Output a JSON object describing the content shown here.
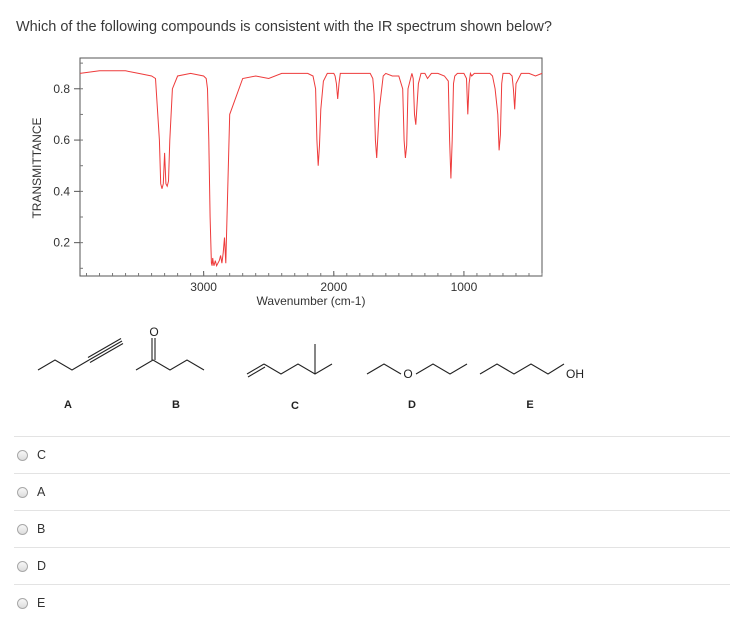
{
  "question": {
    "text": "Which of the following compounds is consistent with the IR spectrum shown below?"
  },
  "chart_data": {
    "type": "line",
    "title": "",
    "xlabel": "Wavenumber (cm-1)",
    "ylabel": "TRANSMITTANCE",
    "xlim": [
      3950,
      400
    ],
    "ylim": [
      0.07,
      0.92
    ],
    "x_reversed": true,
    "xticks": [
      3000,
      2000,
      1000
    ],
    "xtick_labels": [
      "3000",
      "2000",
      "1000"
    ],
    "yticks": [
      0.2,
      0.4,
      0.6,
      0.8
    ],
    "ytick_labels": [
      "0.2",
      "0.4",
      "0.6",
      "0.8"
    ],
    "grid": false,
    "line_color": "#ee3b3b",
    "series": [
      {
        "x": [
          3950,
          3800,
          3600,
          3500,
          3400,
          3370,
          3360,
          3340,
          3330,
          3320,
          3310,
          3300,
          3290,
          3280,
          3270,
          3260,
          3240,
          3200,
          3100,
          3000,
          2980,
          2970,
          2960,
          2950,
          2940,
          2935,
          2930,
          2925,
          2920,
          2910,
          2900,
          2880,
          2870,
          2860,
          2850,
          2840,
          2830,
          2800,
          2700,
          2600,
          2500,
          2400,
          2300,
          2250,
          2200,
          2160,
          2140,
          2130,
          2120,
          2110,
          2100,
          2080,
          2050,
          2000,
          1990,
          1980,
          1970,
          1960,
          1950,
          1900,
          1850,
          1800,
          1750,
          1720,
          1700,
          1690,
          1680,
          1670,
          1650,
          1620,
          1600,
          1550,
          1500,
          1470,
          1460,
          1450,
          1440,
          1430,
          1400,
          1390,
          1380,
          1370,
          1350,
          1330,
          1300,
          1280,
          1250,
          1200,
          1150,
          1120,
          1110,
          1100,
          1090,
          1080,
          1070,
          1050,
          1000,
          980,
          970,
          960,
          950,
          940,
          920,
          900,
          870,
          850,
          830,
          800,
          780,
          760,
          740,
          730,
          720,
          710,
          700,
          650,
          630,
          620,
          610,
          600,
          560,
          500,
          450,
          400
        ],
        "y": [
          0.86,
          0.87,
          0.87,
          0.86,
          0.85,
          0.84,
          0.76,
          0.6,
          0.43,
          0.41,
          0.43,
          0.55,
          0.43,
          0.42,
          0.44,
          0.6,
          0.8,
          0.85,
          0.86,
          0.85,
          0.84,
          0.8,
          0.6,
          0.3,
          0.12,
          0.11,
          0.14,
          0.12,
          0.11,
          0.13,
          0.11,
          0.13,
          0.15,
          0.12,
          0.16,
          0.22,
          0.12,
          0.7,
          0.84,
          0.85,
          0.84,
          0.86,
          0.86,
          0.86,
          0.86,
          0.85,
          0.8,
          0.6,
          0.5,
          0.58,
          0.72,
          0.83,
          0.86,
          0.86,
          0.85,
          0.82,
          0.76,
          0.82,
          0.86,
          0.86,
          0.86,
          0.86,
          0.86,
          0.86,
          0.84,
          0.78,
          0.6,
          0.53,
          0.72,
          0.85,
          0.86,
          0.85,
          0.85,
          0.8,
          0.6,
          0.53,
          0.58,
          0.8,
          0.86,
          0.84,
          0.7,
          0.66,
          0.82,
          0.86,
          0.86,
          0.84,
          0.86,
          0.86,
          0.85,
          0.83,
          0.6,
          0.45,
          0.6,
          0.82,
          0.85,
          0.86,
          0.86,
          0.84,
          0.7,
          0.82,
          0.86,
          0.85,
          0.86,
          0.86,
          0.86,
          0.86,
          0.86,
          0.86,
          0.85,
          0.8,
          0.7,
          0.56,
          0.62,
          0.82,
          0.86,
          0.86,
          0.85,
          0.8,
          0.72,
          0.82,
          0.86,
          0.86,
          0.85,
          0.86
        ]
      }
    ]
  },
  "compounds": [
    {
      "label": "A"
    },
    {
      "label": "B",
      "atom": "O"
    },
    {
      "label": "C"
    },
    {
      "label": "D",
      "atom": "O"
    },
    {
      "label": "E",
      "atom": "OH"
    }
  ],
  "options": [
    {
      "label": "C"
    },
    {
      "label": "A"
    },
    {
      "label": "B"
    },
    {
      "label": "D"
    },
    {
      "label": "E"
    }
  ]
}
